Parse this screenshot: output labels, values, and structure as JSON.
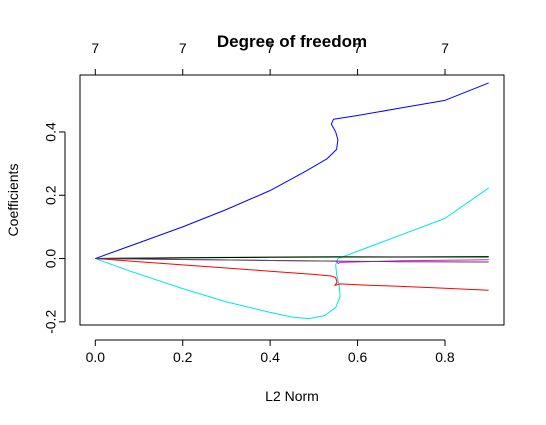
{
  "chart_data": {
    "type": "line",
    "title": "Degree of freedom",
    "xlabel": "L2 Norm",
    "ylabel": "Coefficients",
    "xlim": [
      -0.035,
      0.935
    ],
    "ylim": [
      -0.21,
      0.58
    ],
    "x_ticks": [
      "0.0",
      "0.2",
      "0.4",
      "0.6",
      "0.8"
    ],
    "x_tick_values": [
      0.0,
      0.2,
      0.4,
      0.6,
      0.8
    ],
    "y_ticks": [
      "-0.2",
      "0.0",
      "0.2",
      "0.4"
    ],
    "y_tick_values": [
      -0.2,
      0.0,
      0.2,
      0.4
    ],
    "top_axis": {
      "tick_values": [
        0.0,
        0.2,
        0.4,
        0.6,
        0.8
      ],
      "labels": [
        "7",
        "7",
        "7",
        "7",
        "7"
      ]
    },
    "grid": false,
    "series": [
      {
        "color": "#0000ff",
        "points": [
          [
            0.0,
            0.0
          ],
          [
            0.1,
            0.05
          ],
          [
            0.2,
            0.1
          ],
          [
            0.3,
            0.155
          ],
          [
            0.4,
            0.215
          ],
          [
            0.48,
            0.275
          ],
          [
            0.53,
            0.315
          ],
          [
            0.552,
            0.345
          ],
          [
            0.555,
            0.375
          ],
          [
            0.55,
            0.4
          ],
          [
            0.54,
            0.425
          ],
          [
            0.545,
            0.44
          ],
          [
            0.6,
            0.452
          ],
          [
            0.7,
            0.476
          ],
          [
            0.8,
            0.5
          ],
          [
            0.9,
            0.555
          ]
        ]
      },
      {
        "color": "#00e5e5",
        "points": [
          [
            0.0,
            0.0
          ],
          [
            0.08,
            -0.04
          ],
          [
            0.2,
            -0.095
          ],
          [
            0.3,
            -0.137
          ],
          [
            0.4,
            -0.17
          ],
          [
            0.45,
            -0.185
          ],
          [
            0.49,
            -0.19
          ],
          [
            0.525,
            -0.18
          ],
          [
            0.55,
            -0.155
          ],
          [
            0.56,
            -0.12
          ],
          [
            0.558,
            -0.085
          ],
          [
            0.552,
            -0.05
          ],
          [
            0.55,
            -0.02
          ],
          [
            0.555,
            0.0
          ],
          [
            0.6,
            0.023
          ],
          [
            0.7,
            0.075
          ],
          [
            0.8,
            0.127
          ],
          [
            0.9,
            0.223
          ]
        ]
      },
      {
        "color": "#ff0000",
        "points": [
          [
            0.0,
            0.0
          ],
          [
            0.1,
            -0.01
          ],
          [
            0.2,
            -0.02
          ],
          [
            0.3,
            -0.03
          ],
          [
            0.4,
            -0.04
          ],
          [
            0.5,
            -0.05
          ],
          [
            0.54,
            -0.055
          ],
          [
            0.55,
            -0.06
          ],
          [
            0.553,
            -0.075
          ],
          [
            0.548,
            -0.085
          ],
          [
            0.56,
            -0.08
          ],
          [
            0.6,
            -0.083
          ],
          [
            0.7,
            -0.088
          ],
          [
            0.8,
            -0.094
          ],
          [
            0.9,
            -0.1
          ]
        ]
      },
      {
        "color": "#ff00ff",
        "points": [
          [
            0.0,
            0.0
          ],
          [
            0.2,
            -0.003
          ],
          [
            0.4,
            -0.006
          ],
          [
            0.55,
            -0.008
          ],
          [
            0.553,
            -0.01
          ],
          [
            0.556,
            -0.016
          ],
          [
            0.56,
            -0.012
          ],
          [
            0.7,
            -0.007
          ],
          [
            0.9,
            -0.004
          ]
        ]
      },
      {
        "color": "#00cd00",
        "points": [
          [
            0.0,
            0.0
          ],
          [
            0.2,
            0.003
          ],
          [
            0.4,
            0.005
          ],
          [
            0.55,
            0.006
          ],
          [
            0.7,
            0.005
          ],
          [
            0.9,
            0.004
          ]
        ]
      },
      {
        "color": "#000000",
        "points": [
          [
            0.0,
            0.0
          ],
          [
            0.2,
            0.002
          ],
          [
            0.4,
            0.004
          ],
          [
            0.55,
            0.005
          ],
          [
            0.56,
            0.005
          ],
          [
            0.7,
            0.005
          ],
          [
            0.9,
            0.006
          ]
        ]
      },
      {
        "color": "#4d4d4d",
        "points": [
          [
            0.0,
            0.0
          ],
          [
            0.2,
            -0.003
          ],
          [
            0.4,
            -0.006
          ],
          [
            0.55,
            -0.008
          ],
          [
            0.7,
            -0.01
          ],
          [
            0.9,
            -0.011
          ]
        ]
      }
    ]
  }
}
